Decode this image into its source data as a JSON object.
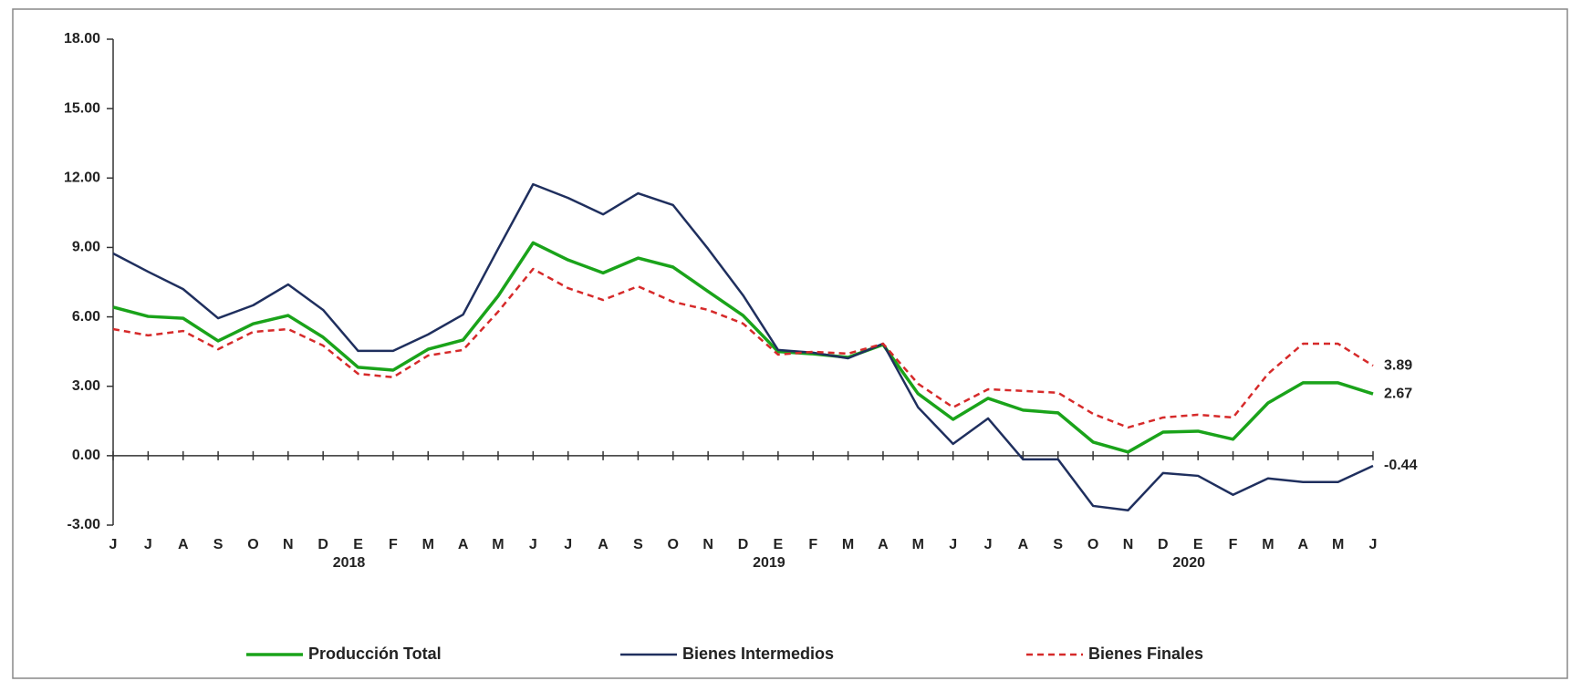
{
  "chart_data": {
    "type": "line",
    "categories": [
      "J",
      "J",
      "A",
      "S",
      "O",
      "N",
      "D",
      "E",
      "F",
      "M",
      "A",
      "M",
      "J",
      "J",
      "A",
      "S",
      "O",
      "N",
      "D",
      "E",
      "F",
      "M",
      "A",
      "M",
      "J",
      "J",
      "A",
      "S",
      "O",
      "N",
      "D",
      "E",
      "F",
      "M",
      "A",
      "M",
      "J"
    ],
    "year_row": [
      null,
      null,
      null,
      null,
      null,
      null,
      null,
      "2018",
      null,
      null,
      null,
      null,
      null,
      null,
      null,
      null,
      null,
      null,
      null,
      "2019",
      null,
      null,
      null,
      null,
      null,
      null,
      null,
      null,
      null,
      null,
      null,
      "2020",
      null,
      null,
      null,
      null,
      null
    ],
    "series": [
      {
        "name": "Producción Total",
        "color": "#1aa31a",
        "dashed": false,
        "width": 3.5,
        "values": [
          6.42,
          6.02,
          5.94,
          4.96,
          5.7,
          6.06,
          5.12,
          3.82,
          3.7,
          4.6,
          5.0,
          6.9,
          9.2,
          8.46,
          7.9,
          8.54,
          8.15,
          7.1,
          6.06,
          4.5,
          4.4,
          4.25,
          4.8,
          2.68,
          1.57,
          2.48,
          1.97,
          1.85,
          0.59,
          0.16,
          1.02,
          1.06,
          0.71,
          2.28,
          3.15,
          3.15,
          2.67
        ]
      },
      {
        "name": "Bienes Intermedios",
        "color": "#1f2f5e",
        "dashed": false,
        "width": 2.5,
        "values": [
          8.74,
          7.95,
          7.2,
          5.94,
          6.5,
          7.4,
          6.3,
          4.53,
          4.53,
          5.24,
          6.1,
          8.94,
          11.73,
          11.14,
          10.43,
          11.34,
          10.83,
          8.94,
          6.93,
          4.57,
          4.45,
          4.21,
          4.84,
          2.09,
          0.51,
          1.61,
          -0.16,
          -0.16,
          -2.17,
          -2.36,
          -0.75,
          -0.87,
          -1.69,
          -0.98,
          -1.14,
          -1.14,
          -0.44
        ]
      },
      {
        "name": "Bienes Finales",
        "color": "#d62a2a",
        "dashed": true,
        "width": 2.5,
        "values": [
          5.47,
          5.2,
          5.39,
          4.6,
          5.35,
          5.47,
          4.76,
          3.54,
          3.39,
          4.33,
          4.57,
          6.22,
          8.07,
          7.24,
          6.73,
          7.32,
          6.65,
          6.3,
          5.71,
          4.37,
          4.49,
          4.41,
          4.84,
          3.11,
          2.09,
          2.87,
          2.8,
          2.72,
          1.81,
          1.22,
          1.65,
          1.77,
          1.65,
          3.54,
          4.84,
          4.84,
          3.89
        ]
      }
    ],
    "ylim": [
      -3,
      18
    ],
    "yticks": [
      {
        "value": -3,
        "label": "-3.00"
      },
      {
        "value": 0,
        "label": "0.00"
      },
      {
        "value": 3,
        "label": "3.00"
      },
      {
        "value": 6,
        "label": "6.00"
      },
      {
        "value": 9,
        "label": "9.00"
      },
      {
        "value": 12,
        "label": "12.00"
      },
      {
        "value": 15,
        "label": "15.00"
      },
      {
        "value": 18,
        "label": "18.00"
      }
    ],
    "grid": false,
    "end_labels": true
  }
}
